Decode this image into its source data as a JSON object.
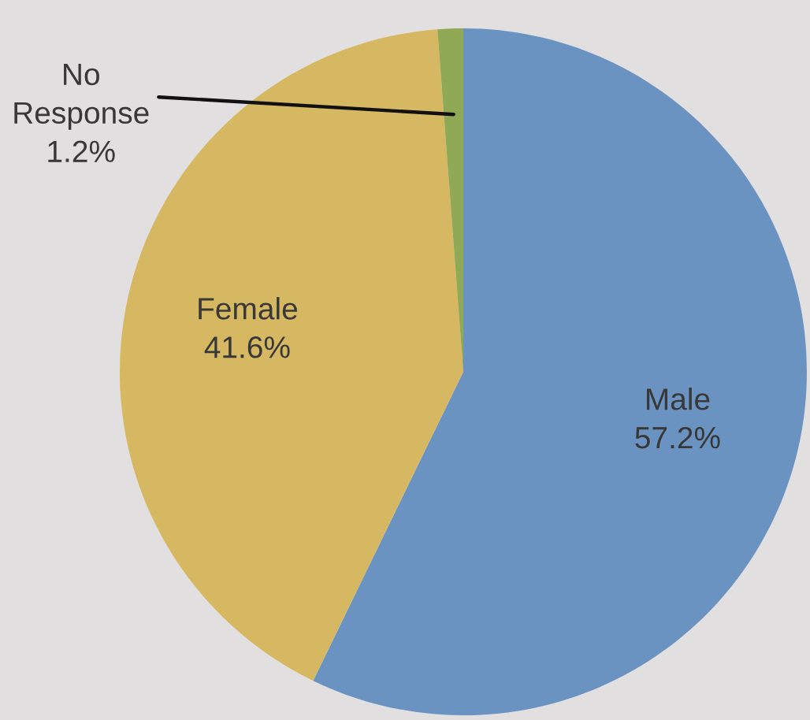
{
  "chart_data": {
    "type": "pie",
    "categories": [
      "Male",
      "Female",
      "No Response"
    ],
    "values": [
      57.2,
      41.6,
      1.2
    ],
    "colors": [
      "#6a93c2",
      "#d6b862",
      "#8fa955"
    ],
    "value_labels": [
      "57.2%",
      "41.6%",
      "1.2%"
    ]
  }
}
